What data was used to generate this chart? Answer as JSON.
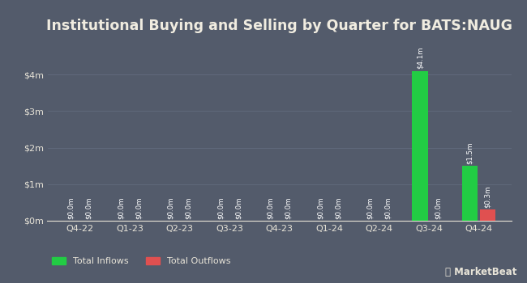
{
  "title": "Institutional Buying and Selling by Quarter for BATS:NAUG",
  "categories": [
    "Q4-22",
    "Q1-23",
    "Q2-23",
    "Q3-23",
    "Q4-23",
    "Q1-24",
    "Q2-24",
    "Q3-24",
    "Q4-24"
  ],
  "inflows": [
    0,
    0,
    0,
    0,
    0,
    0,
    0,
    4100000,
    1500000
  ],
  "outflows": [
    0,
    0,
    0,
    0,
    0,
    0,
    0,
    0,
    300000
  ],
  "inflow_labels": [
    "$0.0m",
    "$0.0m",
    "$0.0m",
    "$0.0m",
    "$0.0m",
    "$0.0m",
    "$0.0m",
    "$4.1m",
    "$1.5m"
  ],
  "outflow_labels": [
    "$0.0m",
    "$0.0m",
    "$0.0m",
    "$0.0m",
    "$0.0m",
    "$0.0m",
    "$0.0m",
    "$0.0m",
    "$0.3m"
  ],
  "inflow_color": "#22cc44",
  "outflow_color": "#e05050",
  "background_color": "#535b6b",
  "plot_bg_color": "#535b6b",
  "title_color": "#f0ece0",
  "text_color": "#e8e4d8",
  "label_color": "#ffffff",
  "grid_color": "#626b7d",
  "ylim": [
    0,
    4800000
  ],
  "yticks": [
    0,
    1000000,
    2000000,
    3000000,
    4000000
  ],
  "ytick_labels": [
    "$0m",
    "$1m",
    "$2m",
    "$3m",
    "$4m"
  ],
  "bar_width": 0.32,
  "bar_gap": 0.04,
  "legend_inflow": "Total Inflows",
  "legend_outflow": "Total Outflows",
  "title_fontsize": 12.5,
  "label_fontsize": 6.2,
  "tick_fontsize": 8,
  "legend_fontsize": 8
}
